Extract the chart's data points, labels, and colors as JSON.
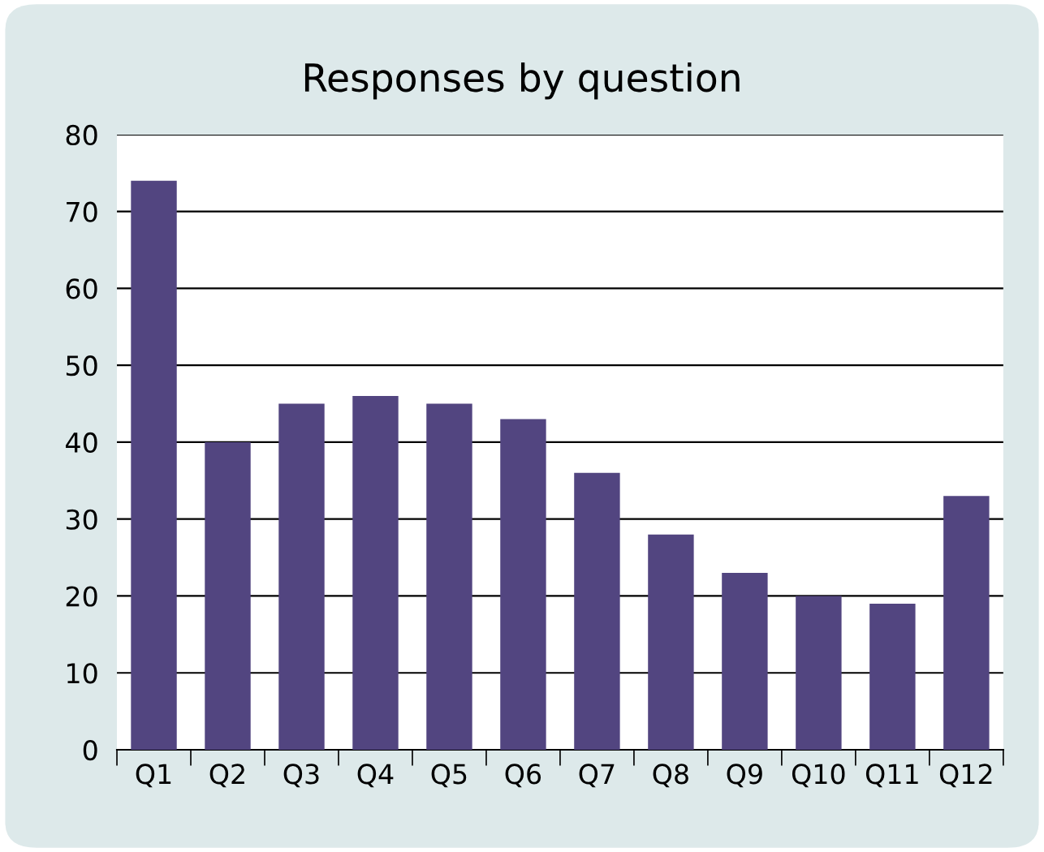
{
  "chart_data": {
    "type": "bar",
    "title": "Responses by question",
    "categories": [
      "Q1",
      "Q2",
      "Q3",
      "Q4",
      "Q5",
      "Q6",
      "Q7",
      "Q8",
      "Q9",
      "Q10",
      "Q11",
      "Q12"
    ],
    "values": [
      74,
      40,
      45,
      46,
      45,
      43,
      36,
      28,
      23,
      20,
      19,
      33
    ],
    "color": "#524580",
    "ylim": [
      0,
      80
    ],
    "yticks": [
      0,
      10,
      20,
      30,
      40,
      50,
      60,
      70,
      80
    ],
    "grid": "y"
  }
}
